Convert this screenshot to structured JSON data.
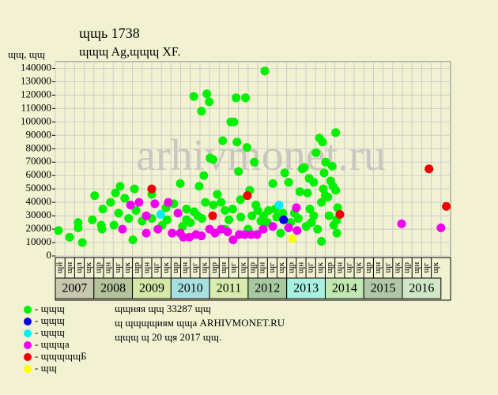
{
  "chart_data": {
    "type": "scatter",
    "title": "ɰɰь 1738",
    "subtitle": "ɰɰɰ Ag,ɰɰɰ XF.",
    "y_unit": "ɰɰ, ɰɰ",
    "watermark": "arhivmonet.ru",
    "xlim": [
      2007,
      2017.25
    ],
    "ylim": [
      0,
      145000
    ],
    "yticks": [
      0,
      10000,
      20000,
      30000,
      40000,
      50000,
      60000,
      70000,
      80000,
      90000,
      100000,
      110000,
      120000,
      130000,
      140000
    ],
    "grid": true,
    "years": [
      2007,
      2008,
      2009,
      2010,
      2011,
      2012,
      2013,
      2014,
      2015,
      2016
    ],
    "year_colors": [
      "#c8c8b0",
      "#b4c49c",
      "#d4e8a8",
      "#a8e0e0",
      "#d8ecb0",
      "#a8c8a0",
      "#a8f0e0",
      "#c0e8b0",
      "#b0c8a8",
      "#d0e8c8"
    ],
    "quarter_labels": [
      "ɰй",
      "ɰн",
      "ɰл",
      "ɰк",
      "ɰр",
      "ɰн",
      "ɰг",
      "ɰк",
      "ɰр",
      "ɰн",
      "ɰг",
      "ɰк",
      "ɰр",
      "ɰн",
      "ɰг",
      "ɰк",
      "ɰр",
      "ɰн",
      "ɰг",
      "ɰк",
      "ɰр",
      "ɰн",
      "ɰг",
      "ɰк",
      "ɰр",
      "ɰн",
      "ɰг",
      "ɰк",
      "ɰр",
      "ɰн",
      "ɰг",
      "ɰк",
      "ɰр",
      "ɰн",
      "ɰг",
      "ɰк",
      "ɰр",
      "ɰн",
      "ɰг",
      "ɰк"
    ],
    "notes": [
      "ɰɰняя ɰɰ 33287 ɰɰ",
      "ɰ ɰɰɰɰиям ɰɰа ARHIVMONET.RU",
      "ɰɰɰ ɰ 20 ɰя 2017 ɰɰ."
    ],
    "series": [
      {
        "name": "- ɰɰɰ",
        "color": "#00f000",
        "x": [
          2007.08,
          2007.37,
          2007.59,
          2007.59,
          2007.7,
          2007.96,
          2008.02,
          2008.19,
          2008.21,
          2008.23,
          2008.43,
          2008.52,
          2008.56,
          2008.64,
          2008.68,
          2008.8,
          2009.01,
          2009.05,
          2009.09,
          2009.25,
          2009.5,
          2009.77,
          2009.87,
          2010.07,
          2010.24,
          2010.4,
          2010.59,
          2010.69,
          2010.73,
          2010.79,
          2010.85,
          2010.89,
          2010.93,
          2010.99,
          2011.01,
          2011.09,
          2011.2,
          2011.34,
          2011.4,
          2011.55,
          2011.63,
          2011.69,
          2011.71,
          2011.75,
          2011.81,
          2011.93,
          2011.97,
          2012.04,
          2012.16,
          2012.25,
          2012.33,
          2012.43,
          2012.53,
          2012.64,
          2012.74,
          2012.84,
          2012.95,
          2013.05,
          2013.2,
          2013.34,
          2013.4,
          2013.46,
          2013.54,
          2013.58,
          2013.64,
          2013.76,
          2013.85,
          2013.9,
          2013.93,
          2013.97,
          2014.01,
          2014.07,
          2014.14,
          2014.18,
          2014.22,
          2014.27,
          2014.27,
          2014.3,
          2014.32,
          2010.3,
          2010.5,
          2010.6,
          2010.8,
          2011.1,
          2011.3,
          2011.5,
          2011.6,
          2011.8,
          2012.1,
          2012.2,
          2012.4,
          2012.5,
          2012.7,
          2012.9,
          2013.1,
          2013.3,
          2013.5,
          2013.6,
          2013.7,
          2013.8,
          2013.9,
          2014.0,
          2014.1,
          2014.2,
          2014.3,
          2013.7,
          2013.95,
          2012.0,
          2011.4,
          2010.4,
          2009.9,
          2009.5,
          2008.9
        ],
        "values": [
          19000,
          14000,
          21000,
          25000,
          10000,
          27000,
          45000,
          23000,
          20000,
          35000,
          40000,
          23000,
          47000,
          32000,
          52000,
          43000,
          12000,
          50000,
          34000,
          26000,
          46000,
          23000,
          36000,
          39000,
          54000,
          27000,
          119000,
          30000,
          52000,
          108000,
          60000,
          40000,
          121000,
          115000,
          73000,
          72000,
          46000,
          86000,
          34000,
          100000,
          100000,
          118000,
          85000,
          63000,
          29000,
          118000,
          81000,
          49000,
          70000,
          34000,
          26000,
          138000,
          34000,
          54000,
          29000,
          17000,
          62000,
          55000,
          32000,
          48000,
          65000,
          66000,
          47000,
          58000,
          25000,
          77000,
          88000,
          11000,
          85000,
          62000,
          70000,
          44000,
          56000,
          67000,
          23000,
          49000,
          92000,
          17000,
          36000,
          22000,
          25000,
          33000,
          28000,
          38000,
          40000,
          27000,
          35000,
          42000,
          30000,
          38000,
          30000,
          25000,
          35000,
          32000,
          25000,
          28000,
          22000,
          35000,
          30000,
          20000,
          40000,
          45000,
          30000,
          52000,
          27000,
          55000,
          50000,
          20000,
          20000,
          35000,
          27000,
          28000,
          28000
        ]
      },
      {
        "name": "- ɰɰɰ",
        "color": "#0000e0",
        "x": [
          2012.92
        ],
        "values": [
          27000
        ]
      },
      {
        "name": "- ɰɰɰ",
        "color": "#00f0f0",
        "x": [
          2009.73,
          2012.8
        ],
        "values": [
          31000,
          38000
        ]
      },
      {
        "name": "- ɰɰɰа",
        "color": "#f000f0",
        "x": [
          2008.74,
          2008.95,
          2009.17,
          2009.36,
          2009.36,
          2009.58,
          2009.66,
          2009.93,
          2010.03,
          2010.18,
          2010.24,
          2010.32,
          2010.48,
          2010.65,
          2010.79,
          2011.0,
          2011.14,
          2011.3,
          2011.47,
          2011.61,
          2011.77,
          2011.91,
          2012.08,
          2012.23,
          2012.39,
          2012.64,
          2013.05,
          2013.25,
          2013.27,
          2015.98,
          2017.0
        ],
        "values": [
          20000,
          38000,
          40000,
          30000,
          17000,
          39000,
          20000,
          40000,
          17000,
          32000,
          17000,
          14000,
          14000,
          16000,
          15000,
          20000,
          17000,
          20000,
          18000,
          12000,
          16000,
          16000,
          16000,
          16000,
          20000,
          22000,
          21000,
          36000,
          19000,
          24000,
          21000
        ]
      },
      {
        "name": "- ɰɰɰɰɰБ",
        "color": "#f00000",
        "x": [
          2009.5,
          2011.08,
          2011.98,
          2014.38,
          2016.69,
          2017.14
        ],
        "values": [
          50000,
          30000,
          45000,
          31000,
          65000,
          37000
        ]
      },
      {
        "name": "- ɰɰ",
        "color": "#ffff00",
        "x": [
          2013.15
        ],
        "values": [
          13000
        ]
      }
    ]
  }
}
